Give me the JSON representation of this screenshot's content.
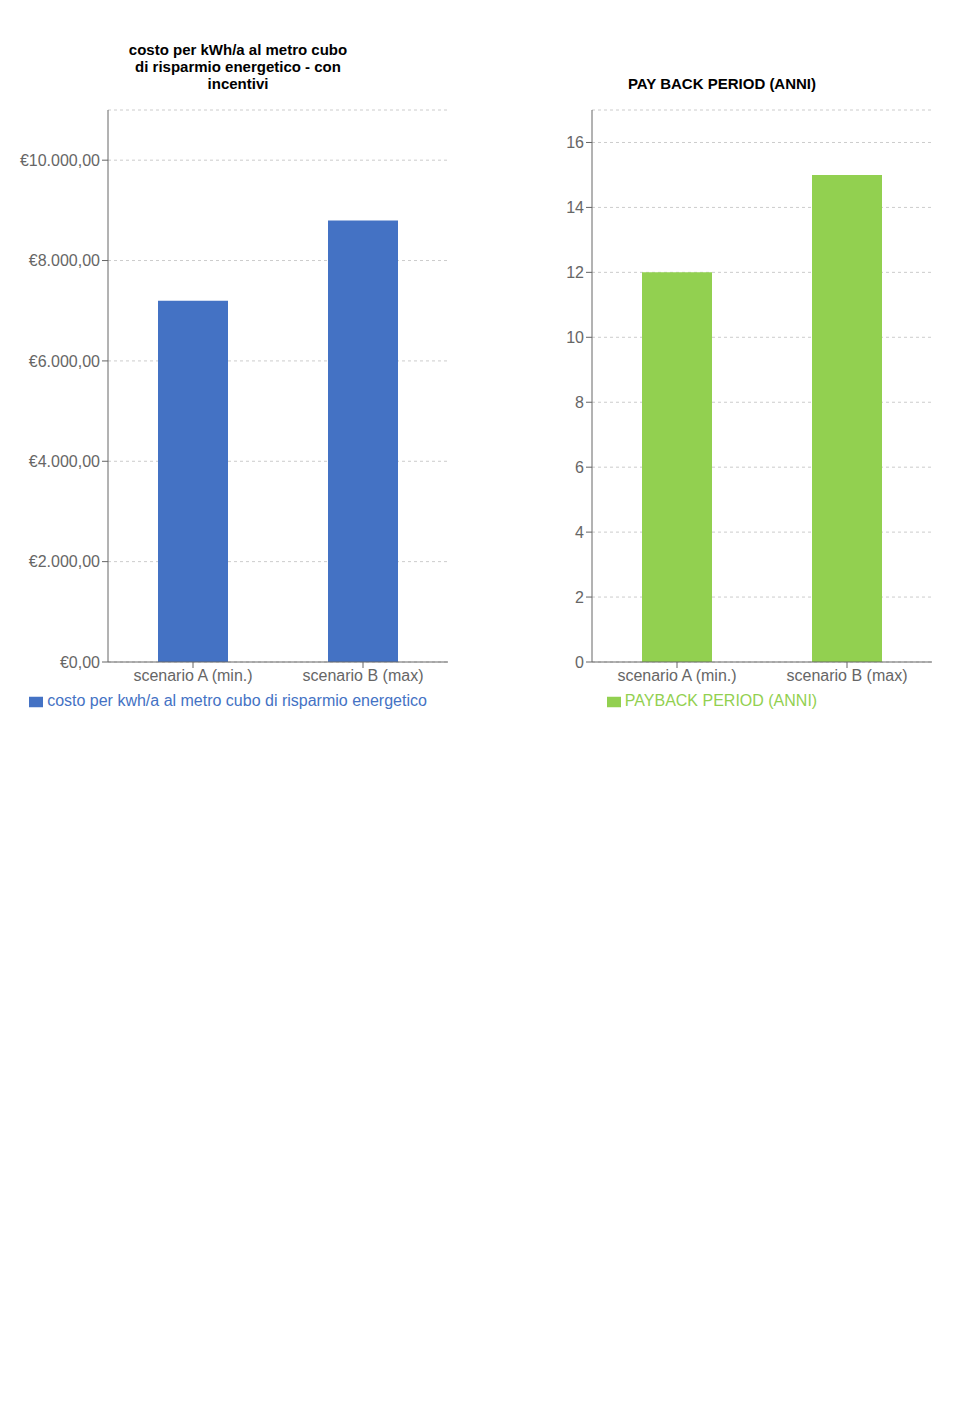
{
  "chart_data": [
    {
      "type": "bar",
      "title": "costo per kWh/a al metro cubo\ndi risparmio energetico - con\nincentivi",
      "categories": [
        "scenario A (min.)",
        "scenario B (max)"
      ],
      "series": [
        {
          "name": "costo per kwh/a al metro cubo di risparmio energetico",
          "color": "#4472C4",
          "values": [
            7200,
            8800
          ]
        }
      ],
      "ylim": [
        0,
        11000
      ],
      "yticks": [
        {
          "value": 0,
          "label": "€0,00"
        },
        {
          "value": 2000,
          "label": "€2.000,00"
        },
        {
          "value": 4000,
          "label": "€4.000,00"
        },
        {
          "value": 6000,
          "label": "€6.000,00"
        },
        {
          "value": 8000,
          "label": "€8.000,00"
        },
        {
          "value": 10000,
          "label": "€10.000,00"
        }
      ],
      "grid": true,
      "legend": "bottom"
    },
    {
      "type": "bar",
      "title": "PAY BACK PERIOD (ANNI)",
      "categories": [
        "scenario A (min.)",
        "scenario B (max)"
      ],
      "series": [
        {
          "name": "PAYBACK PERIOD (ANNI)",
          "color": "#92D050",
          "values": [
            12,
            15
          ]
        }
      ],
      "ylim": [
        0,
        17
      ],
      "yticks": [
        0,
        2,
        4,
        6,
        8,
        10,
        12,
        14,
        16
      ],
      "grid": true,
      "legend": "bottom"
    }
  ]
}
